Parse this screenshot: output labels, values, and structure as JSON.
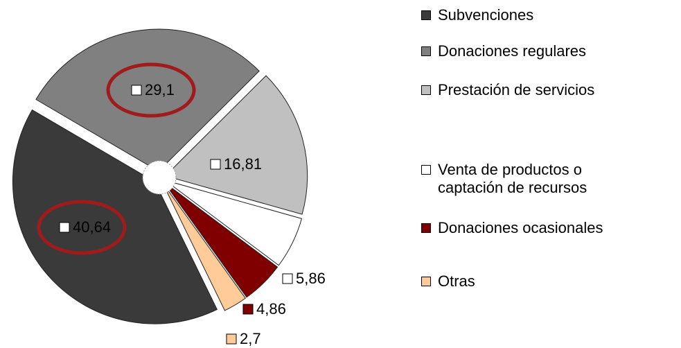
{
  "chart_data": {
    "type": "pie",
    "categories": [
      "Subvenciones",
      "Donaciones regulares",
      "Prestación de servicios",
      "Venta de productos o captación de recursos",
      "Donaciones ocasionales",
      "Otras"
    ],
    "values": [
      40.64,
      29.1,
      16.81,
      5.86,
      4.86,
      2.7
    ],
    "value_labels": [
      "40,64",
      "29,1",
      "16,81",
      "5,86",
      "4,86",
      "2,7"
    ],
    "colors": [
      "#3a3a3a",
      "#808080",
      "#c0c0c0",
      "#ffffff",
      "#800000",
      "#ffcc99"
    ],
    "legend": "right"
  }
}
